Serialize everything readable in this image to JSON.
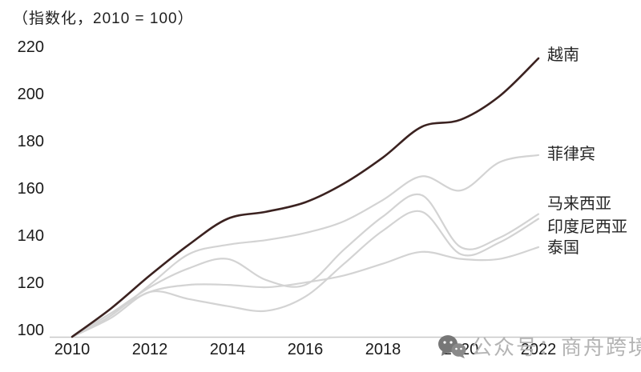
{
  "title": "（指数化，2010 = 100）",
  "watermark": {
    "icon": "wechat-icon",
    "text": "公众号：商舟跨境"
  },
  "chart_data": {
    "type": "line",
    "title": "（指数化，2010 = 100）",
    "x": [
      2010,
      2011,
      2012,
      2013,
      2014,
      2015,
      2016,
      2017,
      2018,
      2019,
      2020,
      2021,
      2022
    ],
    "x_tick_labels": [
      "2010",
      "2012",
      "2014",
      "2016",
      "2018",
      "2020",
      "2022"
    ],
    "x_tick_values": [
      2010,
      2012,
      2014,
      2016,
      2018,
      2020,
      2022
    ],
    "y_ticks": [
      100,
      120,
      140,
      160,
      180,
      200,
      220
    ],
    "ylim": [
      100,
      220
    ],
    "grid": false,
    "legend_position": "line-end-labels-right",
    "axis_color": "#c8c8c8",
    "series": [
      {
        "id": "vietnam",
        "name": "越南",
        "color": "#3b2220",
        "width": 2.6,
        "label_dy": -4,
        "values": [
          100,
          112,
          126,
          139,
          150,
          153,
          157,
          165,
          176,
          189,
          192,
          202,
          218
        ]
      },
      {
        "id": "philippines",
        "name": "菲律宾",
        "color": "#d3d3d3",
        "width": 2.2,
        "label_dy": -1,
        "values": [
          100,
          109,
          122,
          135,
          139,
          141,
          144,
          149,
          158,
          168,
          162,
          174,
          177
        ]
      },
      {
        "id": "malaysia",
        "name": "马来西亚",
        "color": "#d3d3d3",
        "width": 2.2,
        "label_dy": -13,
        "values": [
          100,
          110,
          121,
          129,
          133,
          124,
          122,
          137,
          151,
          160,
          138,
          142,
          152
        ]
      },
      {
        "id": "indonesia",
        "name": "印度尼西亚",
        "color": "#d3d3d3",
        "width": 2.2,
        "label_dy": 10,
        "values": [
          100,
          108,
          119,
          116,
          113,
          111,
          117,
          131,
          145,
          153,
          135,
          140,
          150
        ]
      },
      {
        "id": "thailand",
        "name": "泰国",
        "color": "#d3d3d3",
        "width": 2.2,
        "label_dy": 1,
        "values": [
          100,
          110,
          119,
          122,
          122,
          121,
          123,
          126,
          131,
          136,
          133,
          133,
          138
        ]
      }
    ]
  }
}
